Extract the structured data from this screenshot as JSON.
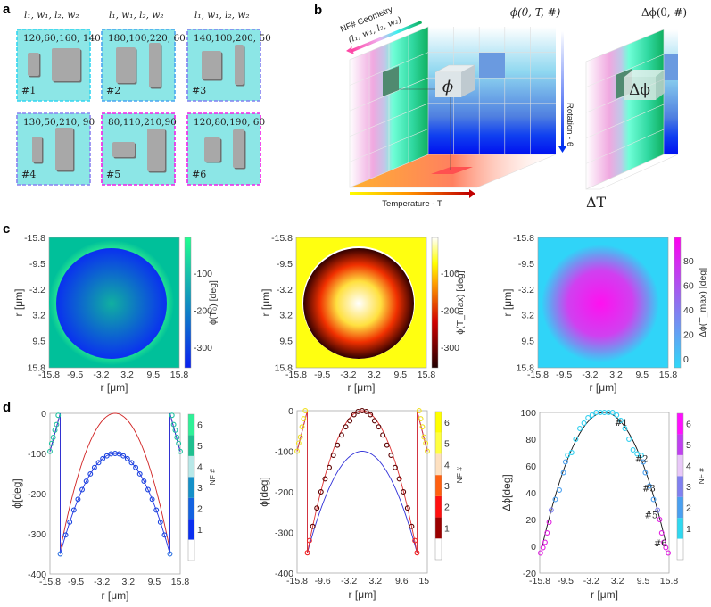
{
  "panel_labels": [
    "a",
    "b",
    "c",
    "d"
  ],
  "panel_a": {
    "column_header": "l₁, w₁, l₂, w₂",
    "cells": [
      {
        "id": "#1",
        "params": "120,60,160, 140",
        "border": "#33d6f0"
      },
      {
        "id": "#2",
        "params": "180,100,220, 60",
        "border": "#4aa6f0"
      },
      {
        "id": "#3",
        "params": "140,100,200, 50",
        "border": "#8080f0"
      },
      {
        "id": "#4",
        "params": "130,50,210, 90",
        "border": "#8a80f0"
      },
      {
        "id": "#5",
        "params": "80,110,210,90",
        "border": "#f020e8"
      },
      {
        "id": "#6",
        "params": "120,80,190, 60",
        "border": "#f020e8"
      }
    ]
  },
  "panel_b": {
    "title_main": "ϕ(θ, T, #)",
    "title_right": "Δϕ(θ, #)",
    "geometry_axis": "NF# Geometry",
    "geometry_params": "(l₁, w₁, l₂, w₂)",
    "temperature_axis": "Temperature - T",
    "rotation_axis": "Rotation - θ",
    "cube_main": "ϕ",
    "cube_right": "Δϕ",
    "delta_t": "ΔT"
  },
  "chart_data": [
    {
      "type": "heatmap",
      "id": "c1",
      "xlabel": "r [μm]",
      "ylabel": "r [μm]",
      "xticks": [
        "-15.8",
        "-9.5",
        "-3.2",
        "3.2",
        "9.5",
        "15.8"
      ],
      "yticks": [
        "-15.8",
        "-9.5",
        "-3.2",
        "3.2",
        "9.5",
        "15.8"
      ],
      "colorbar_label": "ϕ(T₀) [deg]",
      "colorbar_ticks": [
        "-100",
        "-200",
        "-300"
      ],
      "clim": [
        -350,
        0
      ],
      "background_value": -90,
      "center_value": -100,
      "edge_value": -350,
      "colors": {
        "bg": "#00c09a",
        "ring": "#30f090",
        "center": "#10a8a0",
        "edge": "#0a30f0"
      }
    },
    {
      "type": "heatmap",
      "id": "c2",
      "xlabel": "r [μm]",
      "ylabel": "r [μm]",
      "xticks": [
        "-15.8",
        "-9.5",
        "-3.2",
        "3.2",
        "9.5",
        "15.8"
      ],
      "yticks": [
        "-15.8",
        "-9.5",
        "-3.2",
        "3.2",
        "9.5",
        "15.8"
      ],
      "colorbar_label": "ϕ(T_max) [deg]",
      "colorbar_ticks": [
        "-100",
        "-200",
        "-300"
      ],
      "clim": [
        -350,
        0
      ],
      "background_value": -100,
      "center_value": 0,
      "edge_value": -350,
      "colors": {
        "bg": "#ffff10",
        "ring": "#ffffff",
        "center": "#ffffff",
        "edge": "#300000"
      }
    },
    {
      "type": "heatmap",
      "id": "c3",
      "xlabel": "r [μm]",
      "ylabel": "r [μm]",
      "xticks": [
        "-15.8",
        "-9.5",
        "-3.2",
        "3.2",
        "9.5",
        "15.8"
      ],
      "yticks": [
        "-15.8",
        "-9.5",
        "-3.2",
        "3.2",
        "9.5",
        "15.8"
      ],
      "colorbar_label": "Δϕ(T_max) [deg]",
      "colorbar_ticks": [
        "80",
        "60",
        "40",
        "20",
        "0"
      ],
      "clim": [
        -5,
        100
      ],
      "background_value": 0,
      "center_value": 100,
      "edge_value": 0,
      "colors": {
        "bg": "#30d4f8",
        "ring": "#30d4f8",
        "center": "#ff10f0",
        "edge": "#40c8f8"
      }
    },
    {
      "type": "scatter",
      "id": "d1",
      "xlabel": "r [μm]",
      "ylabel": "ϕ[deg]",
      "xlim": [
        -15.8,
        15.8
      ],
      "ylim": [
        -400,
        0
      ],
      "xticks": [
        "-15.8",
        "-9.5",
        "-3.2",
        "3.2",
        "9.5",
        "15.8"
      ],
      "xtick_values": [
        -15.8,
        -9.5,
        -3.2,
        3.2,
        9.5,
        15.8
      ],
      "yticks": [
        0,
        -100,
        -200,
        -300,
        -400
      ],
      "colorbar_label": "NF #",
      "colorbar_ticks": [
        "1",
        "2",
        "3",
        "4",
        "5",
        "6"
      ],
      "colorbar_colors": [
        "#ffffff",
        "#0a2ff0",
        "#1462e0",
        "#1590c8",
        "#b8e8e8",
        "#20c090",
        "#30f098"
      ],
      "lines": [
        {
          "name": "red",
          "color": "#d02020",
          "peak": 0,
          "edge_value": -340,
          "r_edge": 13.3,
          "wrap": [
            [
              -13.3,
              0
            ],
            [
              -15.8,
              -95
            ]
          ]
        },
        {
          "name": "blue",
          "color": "#2030e0",
          "peak": -100,
          "edge_value": -350,
          "r_edge": 13.3,
          "wrap": [
            [
              -13.3,
              0
            ],
            [
              -15.8,
              -95
            ]
          ]
        }
      ],
      "markers": {
        "points": [
          [
            -13.3,
            -350
          ],
          [
            -12,
            -303
          ],
          [
            -11,
            -271
          ],
          [
            -10,
            -241
          ],
          [
            -9,
            -214
          ],
          [
            -8,
            -190
          ],
          [
            -7,
            -169
          ],
          [
            -6,
            -151
          ],
          [
            -5,
            -135
          ],
          [
            -4,
            -123
          ],
          [
            -3,
            -113
          ],
          [
            -2,
            -106
          ],
          [
            -1,
            -101
          ],
          [
            0,
            -100
          ],
          [
            1,
            -101
          ],
          [
            2,
            -106
          ],
          [
            3,
            -113
          ],
          [
            4,
            -123
          ],
          [
            5,
            -135
          ],
          [
            6,
            -151
          ],
          [
            7,
            -169
          ],
          [
            8,
            -190
          ],
          [
            9,
            -214
          ],
          [
            10,
            -241
          ],
          [
            11,
            -271
          ],
          [
            12,
            -303
          ],
          [
            13.3,
            -350
          ],
          [
            -15.8,
            -95
          ],
          [
            -15.4,
            -75
          ],
          [
            -15,
            -60
          ],
          [
            -14.6,
            -42
          ],
          [
            -14.2,
            -28
          ],
          [
            -13.8,
            -5
          ],
          [
            13.8,
            -5
          ],
          [
            14.2,
            -28
          ],
          [
            14.6,
            -42
          ],
          [
            15,
            -60
          ],
          [
            15.4,
            -75
          ],
          [
            15.8,
            -95
          ]
        ],
        "inner_color": "#1a44e0",
        "edge_color": "#22c0a0"
      }
    },
    {
      "type": "scatter",
      "id": "d2",
      "xlabel": "r [μm]",
      "ylabel": "ϕ[deg]",
      "xlim": [
        -15.8,
        15.8
      ],
      "ylim": [
        -400,
        0
      ],
      "xticks": [
        "-15.8",
        "-9.6",
        "-3.2",
        "3.2",
        "9.6",
        "15"
      ],
      "xtick_values": [
        -15.8,
        -9.6,
        -3.2,
        3.2,
        9.6,
        15
      ],
      "yticks": [
        0,
        -100,
        -200,
        -300,
        -400
      ],
      "colorbar_label": "NF #",
      "colorbar_ticks": [
        "1",
        "2",
        "3",
        "4",
        "5",
        "6"
      ],
      "colorbar_colors": [
        "#ffffff",
        "#9a0000",
        "#ff1010",
        "#ff6010",
        "#fde0c0",
        "#ffff40",
        "#ffff00"
      ],
      "lines": [
        {
          "name": "blue",
          "color": "#3030d8",
          "peak": -100,
          "edge_value": -350,
          "r_edge": 13.3,
          "wrap": [
            [
              -13.3,
              0
            ],
            [
              -15.8,
              -100
            ]
          ]
        },
        {
          "name": "red",
          "color": "#e03030",
          "peak": 0,
          "edge_value": -350,
          "r_edge": 13.3,
          "wrap": [
            [
              -13.3,
              0
            ],
            [
              -15.8,
              -100
            ]
          ]
        }
      ],
      "markers": {
        "points": [
          [
            -13.3,
            -350
          ],
          [
            -12.8,
            -320
          ],
          [
            -12,
            -285
          ],
          [
            -11,
            -240
          ],
          [
            -10,
            -200
          ],
          [
            -9,
            -168
          ],
          [
            -8,
            -140
          ],
          [
            -7,
            -110
          ],
          [
            -6,
            -85
          ],
          [
            -5,
            -60
          ],
          [
            -4,
            -40
          ],
          [
            -3,
            -25
          ],
          [
            -2,
            -10
          ],
          [
            -1,
            -2
          ],
          [
            0,
            0
          ],
          [
            1,
            -2
          ],
          [
            2,
            -10
          ],
          [
            3,
            -25
          ],
          [
            4,
            -40
          ],
          [
            5,
            -60
          ],
          [
            6,
            -85
          ],
          [
            7,
            -110
          ],
          [
            8,
            -140
          ],
          [
            9,
            -168
          ],
          [
            10,
            -200
          ],
          [
            11,
            -240
          ],
          [
            12,
            -285
          ],
          [
            12.8,
            -320
          ],
          [
            13.3,
            -350
          ],
          [
            -15.8,
            -100
          ],
          [
            -15.4,
            -80
          ],
          [
            -15,
            -65
          ],
          [
            -14.6,
            -40
          ],
          [
            -14.2,
            -20
          ],
          [
            -13.8,
            0
          ],
          [
            13.8,
            0
          ],
          [
            14.2,
            -20
          ],
          [
            14.6,
            -40
          ],
          [
            15,
            -65
          ],
          [
            15.4,
            -80
          ],
          [
            15.8,
            -100
          ]
        ],
        "inner_color": "#5a0000",
        "edge_color": "#f0e020"
      }
    },
    {
      "type": "scatter",
      "id": "d3",
      "xlabel": "r [μm]",
      "ylabel": "Δϕ[deg]",
      "xlim": [
        -15.8,
        15.8
      ],
      "ylim": [
        -20,
        100
      ],
      "xticks": [
        "-15.8",
        "-9.5",
        "-3.2",
        "3.2",
        "9.5",
        "15.8"
      ],
      "xtick_values": [
        -15.8,
        -9.5,
        -3.2,
        3.2,
        9.5,
        15.8
      ],
      "yticks": [
        100,
        80,
        60,
        40,
        20,
        0,
        -20
      ],
      "colorbar_label": "NF #",
      "colorbar_ticks": [
        "1",
        "2",
        "3",
        "4",
        "5",
        "6"
      ],
      "colorbar_colors": [
        "#ffffff",
        "#30d8f0",
        "#4aa0f0",
        "#8080f0",
        "#e8c8f8",
        "#c040f0",
        "#ff10ff"
      ],
      "lines": [
        {
          "name": "fit",
          "color": "#111111",
          "peak": 100,
          "edge_value": 0,
          "r_edge": 15.2
        }
      ],
      "markers": {
        "points": [
          [
            -15.6,
            -5
          ],
          [
            -15,
            -1
          ],
          [
            -14.5,
            3
          ],
          [
            -14,
            10
          ],
          [
            -13.5,
            18
          ],
          [
            -13,
            27
          ],
          [
            -12,
            35
          ],
          [
            -11,
            42
          ],
          [
            -10,
            55
          ],
          [
            -9.5,
            63
          ],
          [
            -9,
            68
          ],
          [
            -8,
            70
          ],
          [
            -7,
            80
          ],
          [
            -6,
            88
          ],
          [
            -5,
            92
          ],
          [
            -4,
            96
          ],
          [
            -3,
            98
          ],
          [
            -2,
            100
          ],
          [
            -1,
            100
          ],
          [
            0,
            100
          ],
          [
            1,
            100
          ],
          [
            2,
            100
          ],
          [
            3,
            98
          ],
          [
            4,
            94
          ],
          [
            5,
            88
          ],
          [
            6,
            80
          ],
          [
            7,
            72
          ],
          [
            8,
            69
          ],
          [
            9,
            68
          ],
          [
            9.5,
            63
          ],
          [
            10,
            55
          ],
          [
            11,
            45
          ],
          [
            12,
            35
          ],
          [
            13,
            27
          ],
          [
            13.5,
            20
          ],
          [
            14,
            10
          ],
          [
            14.5,
            3
          ],
          [
            15,
            -1
          ],
          [
            15.6,
            -5
          ]
        ],
        "thresholds": [
          [
            67,
            "#30d0f0"
          ],
          [
            32,
            "#4aa0f0"
          ],
          [
            24,
            "#8080f0"
          ],
          [
            -99,
            "#e020e0"
          ]
        ]
      },
      "annotations": [
        {
          "text": "#1",
          "r": 2.5,
          "v": 90
        },
        {
          "text": "#2",
          "r": 7.5,
          "v": 63
        },
        {
          "text": "#3",
          "r": 9.3,
          "v": 41
        },
        {
          "text": "#5",
          "r": 9.8,
          "v": 21
        },
        {
          "text": "#6",
          "r": 12.1,
          "v": 0
        }
      ]
    }
  ]
}
